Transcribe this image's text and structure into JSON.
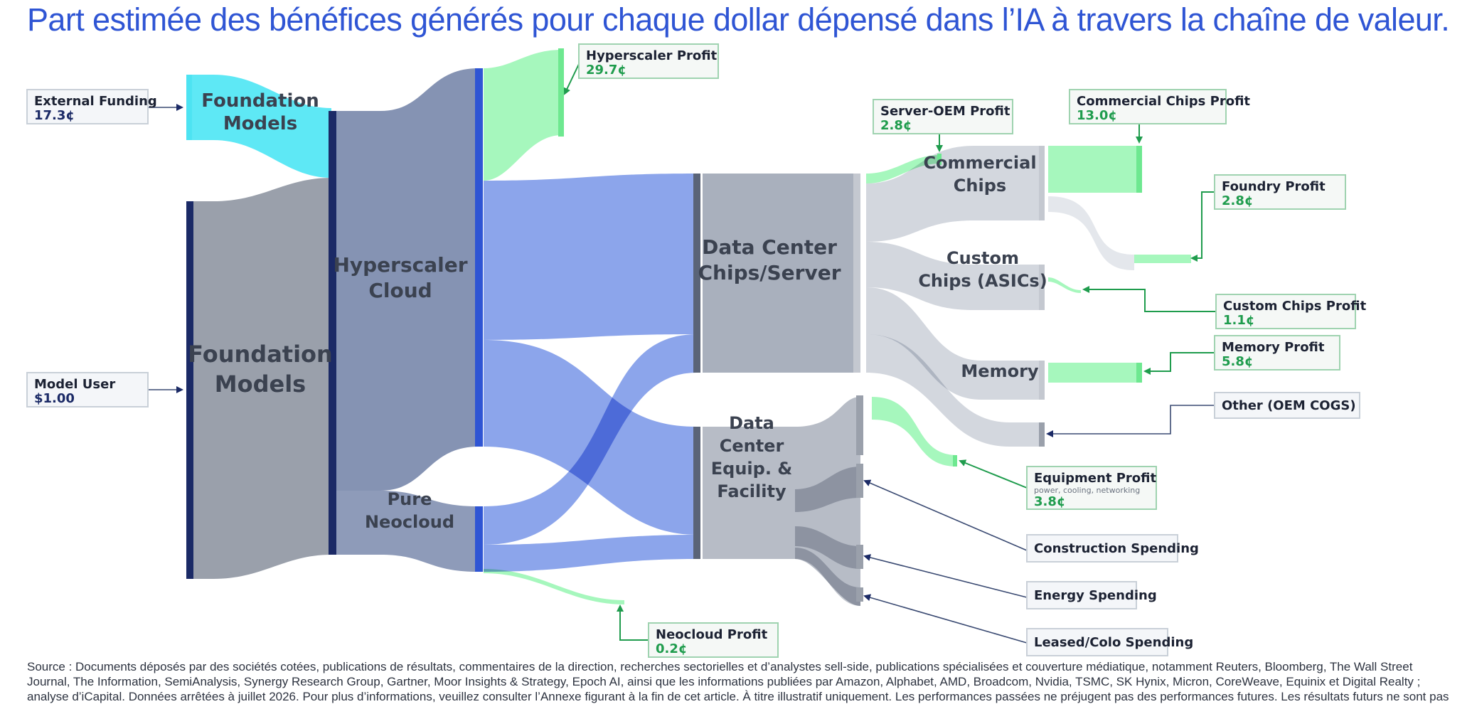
{
  "title": "Part estimée des bénéfices générés pour chaque dollar dépensé dans l’IA à travers la chaîne de valeur.",
  "nodes": {
    "foundation_models_top": "Foundation\nModels",
    "foundation_models_main": "Foundation\nModels",
    "hyperscaler_cloud": "Hyperscaler\nCloud",
    "pure_neocloud": "Pure\nNeocloud",
    "data_center_chips": "Data Center\nChips/Server",
    "data_center_equip": "Data\nCenter\nEquip. &\nFacility",
    "commercial_chips": "Commercial\nChips",
    "custom_chips": "Custom\nChips (ASICs)",
    "memory": "Memory"
  },
  "callouts": {
    "external_funding": {
      "title": "External Funding",
      "value": "17.3¢"
    },
    "model_user": {
      "title": "Model User",
      "value": "$1.00"
    },
    "hyperscaler_profit": {
      "title": "Hyperscaler Profit",
      "value": "29.7¢"
    },
    "neocloud_profit": {
      "title": "Neocloud Profit",
      "value": "0.2¢"
    },
    "server_oem_profit": {
      "title": "Server-OEM Profit",
      "value": "2.8¢"
    },
    "commercial_chips_profit": {
      "title": "Commercial Chips Profit",
      "value": "13.0¢"
    },
    "foundry_profit": {
      "title": "Foundry Profit",
      "value": "2.8¢"
    },
    "custom_chips_profit": {
      "title": "Custom Chips Profit",
      "value": "1.1¢"
    },
    "memory_profit": {
      "title": "Memory Profit",
      "value": "5.8¢"
    },
    "other_oem_cogs": {
      "title": "Other (OEM COGS)"
    },
    "equipment_profit": {
      "title": "Equipment Profit",
      "note": "power, cooling, networking",
      "value": "3.8¢"
    },
    "construction_spending": {
      "title": "Construction Spending"
    },
    "energy_spending": {
      "title": "Energy Spending"
    },
    "leased_colo_spending": {
      "title": "Leased/Colo Spending"
    }
  },
  "colors": {
    "navy": "#1b2a66",
    "cyan": "#5ee8f5",
    "gray_foundation": "#9aa0ab",
    "slate_hyperscaler": "#8593b3",
    "blue_flow": "#6f8ee6",
    "green_profit": "#8ef5a8",
    "light_gray": "#cfd3da",
    "green_text": "#1f9c4d",
    "title_blue": "#2f55d4"
  },
  "source": "Source : Documents déposés par des sociétés cotées, publications de résultats, commentaires de la direction, recherches sectorielles et d’analystes sell-side, publications spécialisées et couverture médiatique, notamment Reuters, Bloomberg, The Wall Street Journal, The Information, SemiAnalysis, Synergy Research Group, Gartner, Moor Insights & Strategy, Epoch AI, ainsi que les informations publiées par Amazon, Alphabet, AMD, Broadcom, Nvidia, TSMC, SK Hynix, Micron, CoreWeave, Equinix et Digital Realty ; analyse d’iCapital. Données arrêtées à juillet 2026. Pour plus d’informations, veuillez consulter l’Annexe figurant à la fin de cet article. À titre illustratif uniquement. Les performances passées ne préjugent pas des performances futures. Les résultats futurs ne sont pas garantis."
}
